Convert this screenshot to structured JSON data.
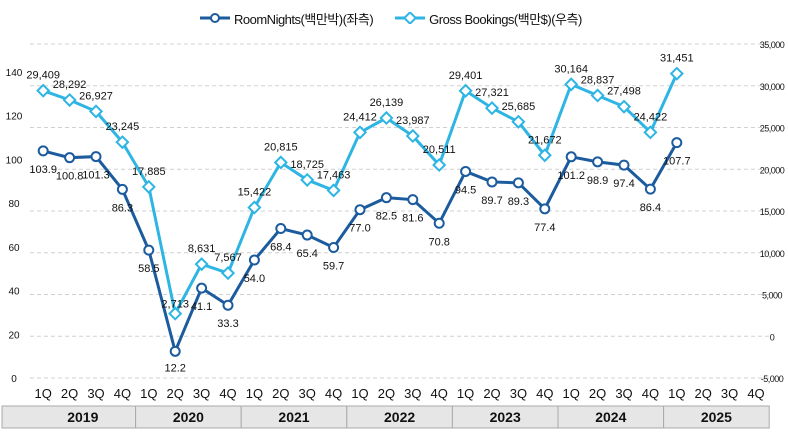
{
  "chart_data": {
    "type": "line",
    "legend_position": "top-center",
    "grid": "horizontal-dashed",
    "colors": {
      "room_nights": "#1B5B9E",
      "gross_bookings": "#2EB5E3"
    },
    "quarters": [
      "1Q",
      "2Q",
      "3Q",
      "4Q",
      "1Q",
      "2Q",
      "3Q",
      "4Q",
      "1Q",
      "2Q",
      "3Q",
      "4Q",
      "1Q",
      "2Q",
      "3Q",
      "4Q",
      "1Q",
      "2Q",
      "3Q",
      "4Q",
      "1Q",
      "2Q",
      "3Q",
      "4Q",
      "1Q",
      "2Q",
      "3Q",
      "4Q"
    ],
    "years": [
      "2019",
      "2020",
      "2021",
      "2022",
      "2023",
      "2024",
      "2025"
    ],
    "left_axis": {
      "ticks": [
        "0",
        "20",
        "40",
        "60",
        "80",
        "100",
        "120",
        "140"
      ],
      "range": [
        0,
        140
      ]
    },
    "right_axis": {
      "ticks": [
        "-5,000",
        "0",
        "5,000",
        "10,000",
        "15,000",
        "20,000",
        "25,000",
        "30,000",
        "35,000"
      ],
      "range": [
        -5000,
        35000
      ]
    },
    "series": [
      {
        "name": "RoomNights(백만박)(좌측)",
        "axis": "left",
        "values": [
          103.9,
          100.8,
          101.3,
          86.3,
          58.5,
          12.2,
          41.1,
          33.3,
          54.0,
          68.4,
          65.4,
          59.7,
          77.0,
          82.5,
          81.6,
          70.8,
          94.5,
          89.7,
          89.3,
          77.4,
          101.2,
          98.9,
          97.4,
          86.4,
          107.7
        ],
        "labels": [
          "103.9",
          "100.8",
          "101.3",
          "86.3",
          "58.5",
          "12.2",
          "41.1",
          "33.3",
          "54.0",
          "68.4",
          "65.4",
          "59.7",
          "77.0",
          "82.5",
          "81.6",
          "70.8",
          "94.5",
          "89.7",
          "89.3",
          "77.4",
          "101.2",
          "98.9",
          "97.4",
          "86.4",
          "107.7"
        ]
      },
      {
        "name": "Gross Bookings(백만$)(우측)",
        "axis": "right",
        "values": [
          29409,
          28292,
          26927,
          23245,
          17885,
          2713,
          8631,
          7567,
          15422,
          20815,
          18725,
          17463,
          24412,
          26139,
          23987,
          20511,
          29401,
          27321,
          25685,
          21672,
          30164,
          28837,
          27498,
          24422,
          31451
        ],
        "labels": [
          "29,409",
          "28,292",
          "26,927",
          "23,245",
          "17,885",
          "2,713",
          "8,631",
          "7,567",
          "15,422",
          "20,815",
          "18,725",
          "17,463",
          "24,412",
          "26,139",
          "23,987",
          "20,511",
          "29,401",
          "27,321",
          "25,685",
          "21,672",
          "30,164",
          "28,837",
          "27,498",
          "24,422",
          "31,451"
        ]
      }
    ]
  }
}
